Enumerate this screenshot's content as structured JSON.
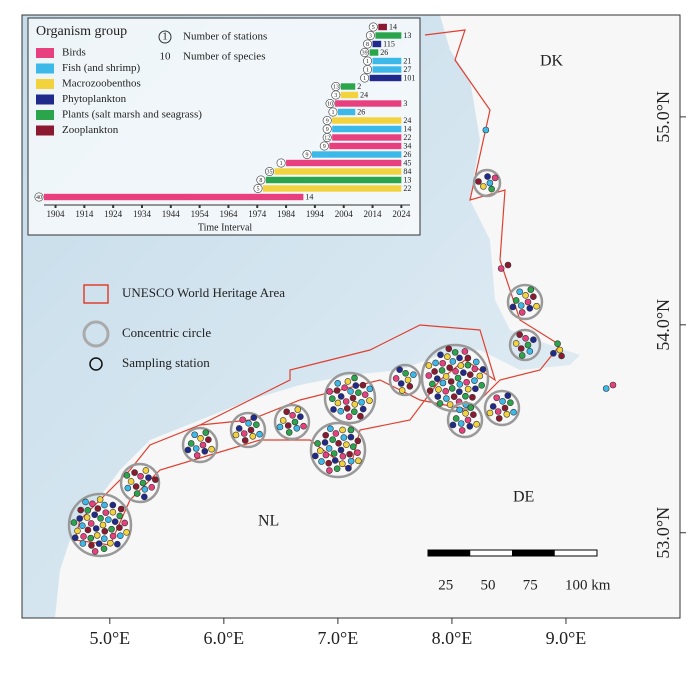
{
  "map": {
    "xlim": [
      4.23,
      10.0
    ],
    "ylim": [
      52.59,
      55.49
    ],
    "lon_ticks": [
      {
        "value": 5,
        "label": "5.0°E"
      },
      {
        "value": 6,
        "label": "6.0°E"
      },
      {
        "value": 7,
        "label": "7.0°E"
      },
      {
        "value": 8,
        "label": "8.0°E"
      },
      {
        "value": 9,
        "label": "9.0°E"
      }
    ],
    "lat_ticks": [
      {
        "value": 53,
        "label": "53.0°N"
      },
      {
        "value": 54,
        "label": "54.0°N"
      },
      {
        "value": 55,
        "label": "55.0°N"
      }
    ],
    "places": [
      "DK",
      "DE",
      "NL"
    ],
    "legend": [
      "UNESCO World Heritage Area",
      "Concentric circle",
      "Sampling station"
    ],
    "scale_bar": {
      "range": [
        0,
        100
      ],
      "ticks": [
        25,
        50,
        75,
        {
          "value": 100,
          "label": "100 km"
        }
      ]
    }
  },
  "inset": {
    "title": "Organism group",
    "groups": [
      {
        "name": "Birds",
        "color": "#e8407e"
      },
      {
        "name": "Fish (and shrimp)",
        "color": "#3cb9e8"
      },
      {
        "name": "Macrozoobenthos",
        "color": "#f2d33e"
      },
      {
        "name": "Phytoplankton",
        "color": "#1f2a8c"
      },
      {
        "name": "Plants (salt marsh and seagrass)",
        "color": "#2aa54b"
      },
      {
        "name": "Zooplankton",
        "color": "#8b1a30"
      }
    ],
    "stations_key": {
      "symbol": "1",
      "label": "Number of stations"
    },
    "species_key": {
      "symbol": "10",
      "label": "Number of species"
    },
    "chart": {
      "type": "timeline",
      "xlabel": "Time Interval",
      "xlim": [
        1900,
        2027
      ],
      "xticks": [
        1904,
        1914,
        1924,
        1934,
        1944,
        1954,
        1964,
        1974,
        1984,
        1994,
        2004,
        2014,
        2024
      ],
      "bars": [
        {
          "start": 2016,
          "end": 2019,
          "stations": 5,
          "species": 14,
          "color": "#8b1a30"
        },
        {
          "start": 2015,
          "end": 2024,
          "stations": 3,
          "species": 13,
          "color": "#2aa54b"
        },
        {
          "start": 2014,
          "end": 2017,
          "stations": 8,
          "species": 115,
          "color": "#1f2a8c"
        },
        {
          "start": 2013,
          "end": 2016,
          "stations": 39,
          "species": 26,
          "color": "#2aa54b"
        },
        {
          "start": 2014,
          "end": 2024,
          "stations": 1,
          "species": 21,
          "color": "#3cb9e8"
        },
        {
          "start": 2014,
          "end": 2024,
          "stations": 1,
          "species": 27,
          "color": "#3cb9e8"
        },
        {
          "start": 2013,
          "end": 2024,
          "stations": 1,
          "species": 101,
          "color": "#1f2a8c"
        },
        {
          "start": 2003,
          "end": 2008,
          "stations": 13,
          "species": 2,
          "color": "#2aa54b"
        },
        {
          "start": 2003,
          "end": 2009,
          "stations": 3,
          "species": 24,
          "color": "#f2d33e"
        },
        {
          "start": 2001,
          "end": 2024,
          "stations": 10,
          "species": 3,
          "color": "#e8407e"
        },
        {
          "start": 2002,
          "end": 2008,
          "stations": 1,
          "species": 26,
          "color": "#3cb9e8"
        },
        {
          "start": 2000,
          "end": 2024,
          "stations": 9,
          "species": 24,
          "color": "#f2d33e"
        },
        {
          "start": 2000,
          "end": 2024,
          "stations": 9,
          "species": 14,
          "color": "#3cb9e8"
        },
        {
          "start": 2000,
          "end": 2024,
          "stations": 12,
          "species": 22,
          "color": "#e8407e"
        },
        {
          "start": 1999,
          "end": 2024,
          "stations": 9,
          "species": 34,
          "color": "#e8407e"
        },
        {
          "start": 1993,
          "end": 2024,
          "stations": 9,
          "species": 26,
          "color": "#3cb9e8"
        },
        {
          "start": 1984,
          "end": 2024,
          "stations": 1,
          "species": 45,
          "color": "#e8407e"
        },
        {
          "start": 1980,
          "end": 2024,
          "stations": 35,
          "species": 84,
          "color": "#f2d33e"
        },
        {
          "start": 1977,
          "end": 2024,
          "stations": 8,
          "species": 13,
          "color": "#2aa54b"
        },
        {
          "start": 1976,
          "end": 2024,
          "stations": 5,
          "species": 22,
          "color": "#f2d33e"
        },
        {
          "start": 1900,
          "end": 1990,
          "stations": 40,
          "species": 14,
          "color": "#e8407e"
        }
      ]
    }
  }
}
